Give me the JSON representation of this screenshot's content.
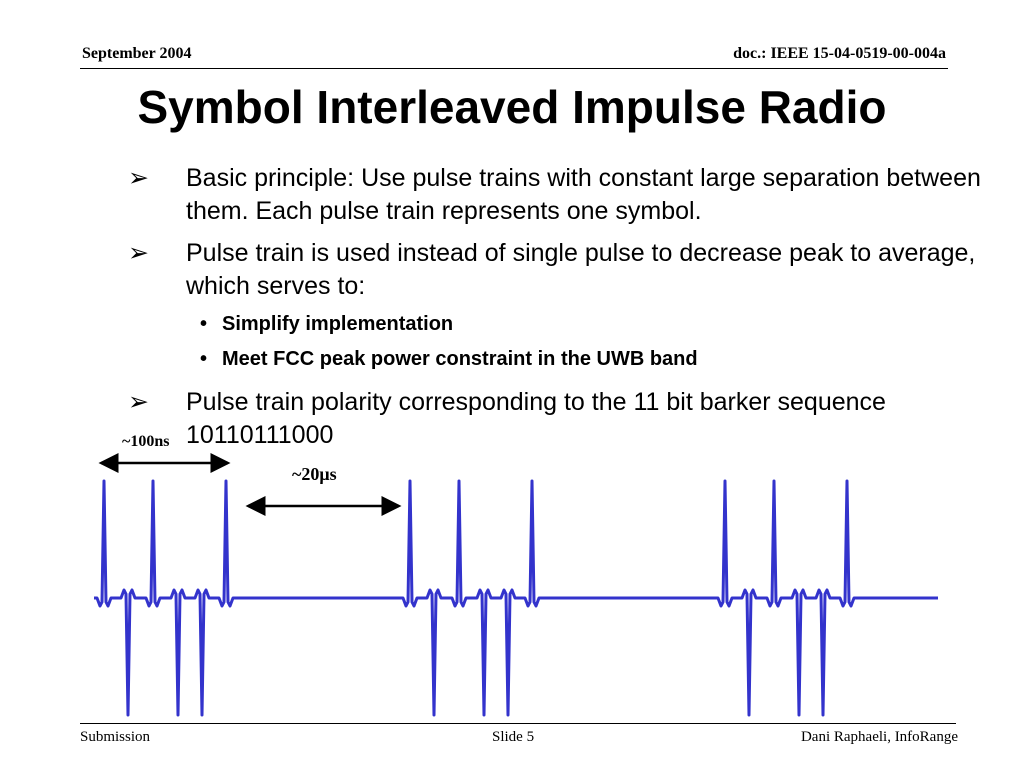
{
  "header": {
    "date": "September 2004",
    "doc": "doc.: IEEE 15-04-0519-00-004a"
  },
  "title": "Symbol Interleaved Impulse Radio",
  "bullets": [
    {
      "marker": "➢",
      "text": "Basic principle: Use pulse trains with constant large separation between them. Each pulse train represents one symbol."
    },
    {
      "marker": "➢",
      "text": "Pulse train is used instead of single pulse to decrease peak to average, which serves to:"
    },
    {
      "marker": "•",
      "text": "Simplify implementation"
    },
    {
      "marker": "•",
      "text": "Meet FCC peak power constraint in the UWB band"
    },
    {
      "marker": "➢",
      "text": "Pulse train polarity corresponding to the 11 bit barker sequence 10110111000"
    }
  ],
  "figure": {
    "short_span": "~100ns",
    "long_span": "~20μs"
  },
  "footer": {
    "left": "Submission",
    "center": "Slide 5",
    "right": "Dani Raphaeli, InfoRange"
  }
}
